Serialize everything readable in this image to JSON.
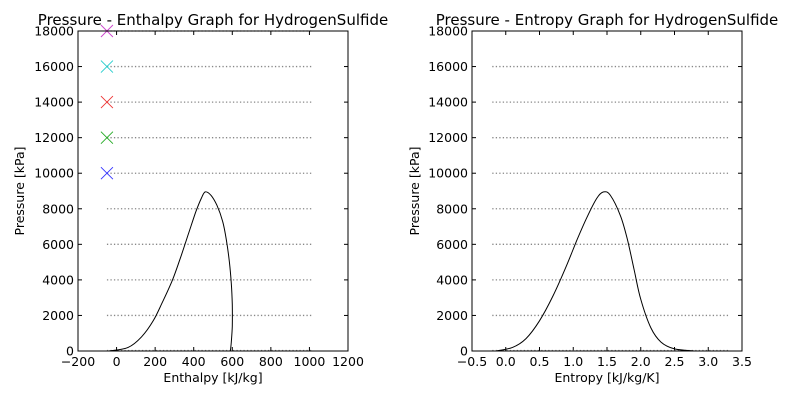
{
  "chart_data": [
    {
      "type": "line",
      "title": "Pressure - Enthalpy Graph for HydrogenSulfide",
      "xlabel": "Enthalpy [kJ/kg]",
      "ylabel": "Pressure [kPa]",
      "xlim": [
        -200,
        1200
      ],
      "ylim": [
        0,
        18000
      ],
      "xticks": [
        "−200",
        "0",
        "200",
        "400",
        "600",
        "800",
        "1000",
        "1200"
      ],
      "yticks": [
        "0",
        "2000",
        "4000",
        "6000",
        "8000",
        "10000",
        "12000",
        "14000",
        "16000",
        "18000"
      ],
      "grid": false,
      "isobar_range": [
        -50,
        1020
      ],
      "isobars": [
        2000,
        4000,
        6000,
        8000,
        10000,
        12000,
        14000,
        16000,
        18000
      ],
      "markers": [
        {
          "x": -50,
          "y": 10000,
          "color": "#3333ff"
        },
        {
          "x": -50,
          "y": 12000,
          "color": "#22aa22"
        },
        {
          "x": -50,
          "y": 14000,
          "color": "#ee3333"
        },
        {
          "x": -50,
          "y": 16000,
          "color": "#22cccc"
        },
        {
          "x": -50,
          "y": 18000,
          "color": "#cc44cc"
        }
      ],
      "curve": {
        "x": [
          -40,
          60,
          130,
          190,
          240,
          290,
          330,
          370,
          410,
          440,
          460,
          490,
          520,
          550,
          570,
          585,
          595,
          600,
          600,
          595,
          590
        ],
        "y": [
          0,
          200,
          800,
          1700,
          2800,
          4000,
          5200,
          6500,
          7800,
          8600,
          8950,
          8750,
          8200,
          7300,
          6200,
          5000,
          3800,
          2600,
          1400,
          500,
          0
        ]
      }
    },
    {
      "type": "line",
      "title": "Pressure - Entropy Graph for HydrogenSulfide",
      "xlabel": "Entropy [kJ/kg/K]",
      "ylabel": "Pressure [kPa]",
      "xlim": [
        -0.5,
        3.5
      ],
      "ylim": [
        0,
        18000
      ],
      "xticks": [
        "−0.5",
        "0.0",
        "0.5",
        "1.0",
        "1.5",
        "2.0",
        "2.5",
        "3.0",
        "3.5"
      ],
      "yticks": [
        "0",
        "2000",
        "4000",
        "6000",
        "8000",
        "10000",
        "12000",
        "14000",
        "16000",
        "18000"
      ],
      "grid": false,
      "isobar_range": [
        -0.2,
        3.3
      ],
      "isobars": [
        2000,
        4000,
        6000,
        8000,
        10000,
        12000,
        14000,
        16000
      ],
      "curve": {
        "x": [
          -0.15,
          0.1,
          0.3,
          0.5,
          0.7,
          0.9,
          1.05,
          1.2,
          1.35,
          1.45,
          1.55,
          1.7,
          1.8,
          1.9,
          2.0,
          2.15,
          2.3,
          2.5,
          2.8
        ],
        "y": [
          0,
          200,
          700,
          1700,
          3100,
          4800,
          6200,
          7500,
          8600,
          8950,
          8750,
          7600,
          6300,
          4600,
          2900,
          1300,
          500,
          120,
          0
        ]
      }
    }
  ]
}
